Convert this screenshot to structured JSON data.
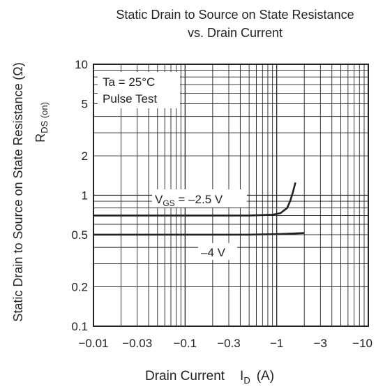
{
  "chart_data": {
    "type": "line",
    "title_line1": "Static Drain to Source on State Resistance",
    "title_line2": "vs. Drain Current",
    "xlabel": "Drain Current",
    "xlabel_symbol": "I",
    "xlabel_sub": "D",
    "xlabel_unit": "(A)",
    "ylabel_line1": "Static Drain to Source on State Resistance",
    "ylabel_symbol": "R",
    "ylabel_sub": "DS (on)",
    "ylabel_unit": "(Ω)",
    "x_scale": "log",
    "y_scale": "log",
    "xlim": [
      -0.01,
      -10
    ],
    "ylim": [
      0.1,
      10
    ],
    "x_ticks": [
      {
        "value": -0.01,
        "label": "−0.01"
      },
      {
        "value": -0.03,
        "label": "−0.03"
      },
      {
        "value": -0.1,
        "label": "−0.1"
      },
      {
        "value": -0.3,
        "label": "−0.3"
      },
      {
        "value": -1,
        "label": "−1"
      },
      {
        "value": -3,
        "label": "−3"
      },
      {
        "value": -10,
        "label": "−10"
      }
    ],
    "y_ticks": [
      {
        "value": 0.1,
        "label": "0.1"
      },
      {
        "value": 0.2,
        "label": "0.2"
      },
      {
        "value": 0.5,
        "label": "0.5"
      },
      {
        "value": 1,
        "label": "1"
      },
      {
        "value": 2,
        "label": "2"
      },
      {
        "value": 5,
        "label": "5"
      },
      {
        "value": 10,
        "label": "10"
      }
    ],
    "grid": true,
    "conditions": [
      "Ta = 25°C",
      "Pulse Test"
    ],
    "series": [
      {
        "label_pre": "V",
        "label_sub": "GS",
        "label_post": " = –2.5 V",
        "x": [
          -0.01,
          -0.1,
          -0.5,
          -0.9,
          -1.1,
          -1.3,
          -1.4,
          -1.5,
          -1.6
        ],
        "y": [
          0.7,
          0.7,
          0.7,
          0.71,
          0.73,
          0.8,
          0.9,
          1.05,
          1.25
        ]
      },
      {
        "label_pre": "",
        "label_sub": "",
        "label_post": "–4 V",
        "x": [
          -0.01,
          -0.1,
          -0.5,
          -1,
          -1.5,
          -2
        ],
        "y": [
          0.5,
          0.5,
          0.5,
          0.505,
          0.51,
          0.515
        ]
      }
    ]
  }
}
